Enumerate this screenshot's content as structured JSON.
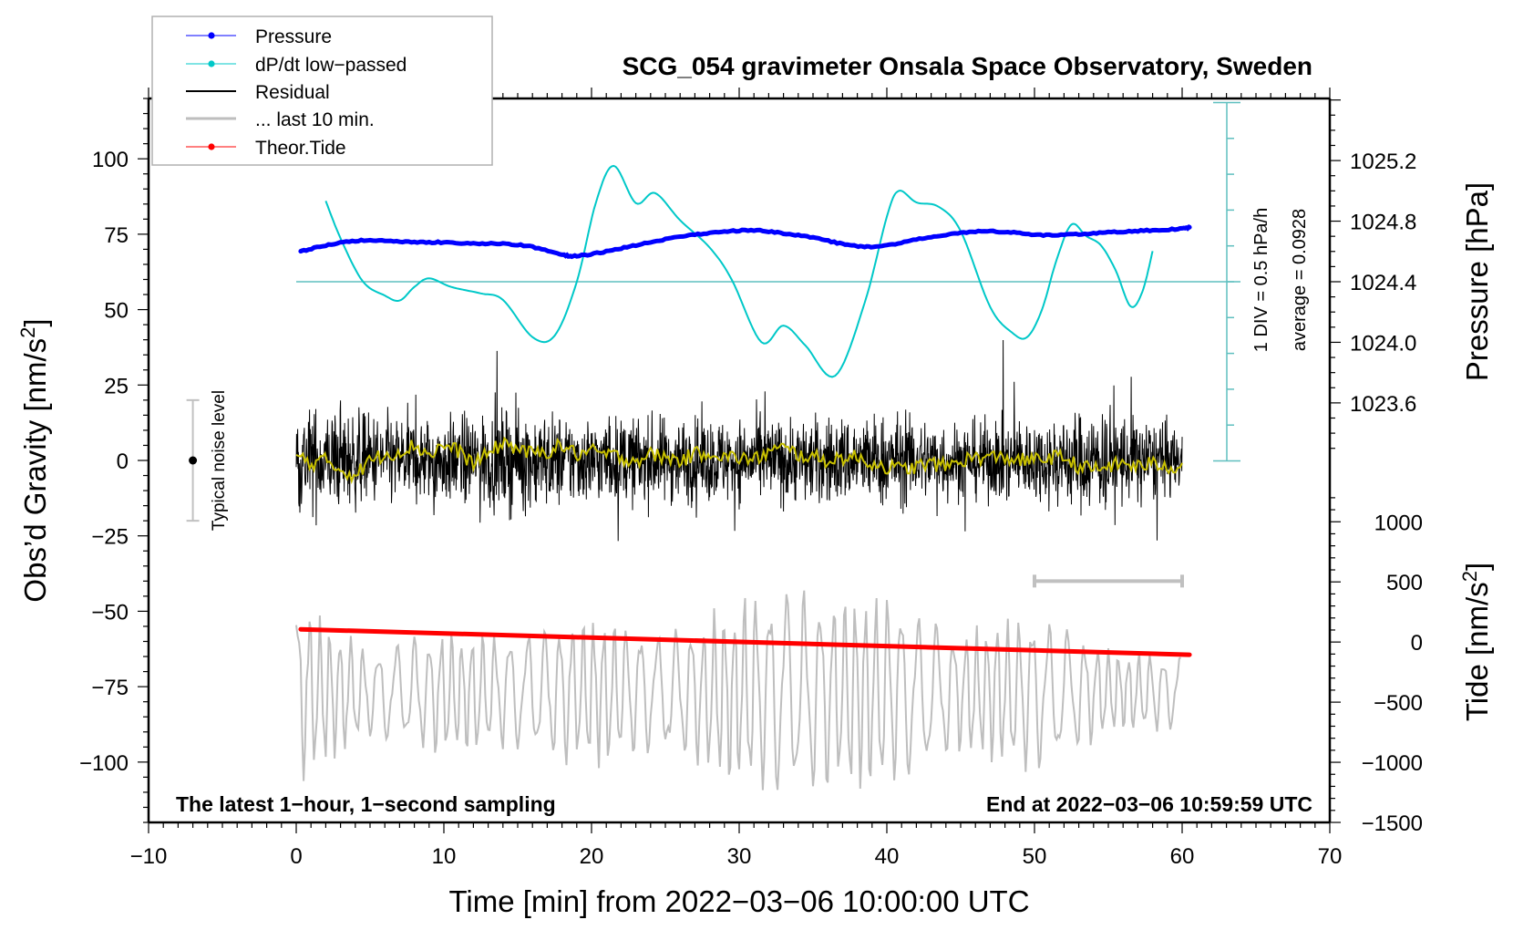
{
  "chart_data": {
    "type": "line",
    "title": "SCG_054 gravimeter Onsala Space Observatory, Sweden",
    "xlabel": "Time [min] from 2022−03−06 10:00:00 UTC",
    "ylabel_left": "Obs’d Gravity [nm/s²]",
    "ylabel_right_pressure": "Pressure [hPa]",
    "ylabel_right_tide": "Tide [nm/s²]",
    "xlim": [
      -10,
      70
    ],
    "ylim": [
      -120,
      120
    ],
    "x_ticks": [
      -10,
      0,
      10,
      20,
      30,
      40,
      50,
      60,
      70
    ],
    "x_tick_labels": [
      "−10",
      "0",
      "10",
      "20",
      "30",
      "40",
      "50",
      "60",
      "70"
    ],
    "y_ticks": [
      -100,
      -75,
      -50,
      -25,
      0,
      25,
      50,
      75,
      100
    ],
    "y_tick_labels": [
      "−100",
      "−75",
      "−50",
      "−25",
      "0",
      "25",
      "50",
      "75",
      "100"
    ],
    "pressure_axis": {
      "lim": [
        1020.83,
        1025.61
      ],
      "ticks": [
        1023.6,
        1024.0,
        1024.4,
        1024.8,
        1025.2
      ],
      "tick_labels": [
        "1023.6",
        "1024.0",
        "1024.4",
        "1024.8",
        "1025.2"
      ]
    },
    "tide_axis": {
      "lim": [
        -1500,
        4520
      ],
      "ticks": [
        -1500,
        -1000,
        -500,
        0,
        500,
        1000
      ],
      "tick_labels": [
        "−1500",
        "−1000",
        "−500",
        "0",
        "500",
        "1000"
      ]
    },
    "dpdt_scale": {
      "label_div": "1 DIV = 0.5 hPa/h",
      "label_avg": "average = 0.0928",
      "average": 0.0928,
      "per_div": 0.5,
      "divisions": 10
    },
    "legend": {
      "position": "top-left",
      "entries": [
        {
          "label": "Pressure",
          "color": "#0000ff",
          "marker": "dot"
        },
        {
          "label": "dP/dt low−passed",
          "color": "#00c8c8",
          "marker": "dot"
        },
        {
          "label": "Residual",
          "color": "#000000",
          "marker": "line"
        },
        {
          "label": "... last 10 min.",
          "color": "#bebebe",
          "marker": "line"
        },
        {
          "label": "Theor.Tide",
          "color": "#ff0000",
          "marker": "dot"
        }
      ]
    },
    "annotations": {
      "bottom_left": "The latest 1−hour, 1−second sampling",
      "bottom_right": "End at 2022−03−06 10:59:59 UTC",
      "noise_label": "Typical noise level",
      "noise_level": {
        "x": -7,
        "center": 0,
        "half_range": 20
      },
      "last10_bar": {
        "x_from": 50,
        "x_to": 60,
        "y": -40
      }
    },
    "series": [
      {
        "name": "Pressure",
        "axis": "pressure",
        "color": "#0000ff",
        "x": [
          0.3,
          2,
          4,
          6,
          8,
          10,
          12,
          14,
          16,
          18,
          19,
          21,
          23,
          25,
          27,
          29,
          31,
          33,
          35,
          37,
          38.5,
          40,
          42,
          44,
          46,
          48,
          50,
          52,
          54,
          56,
          58,
          60,
          60.5
        ],
        "y": [
          1024.6,
          1024.64,
          1024.67,
          1024.67,
          1024.66,
          1024.66,
          1024.65,
          1024.65,
          1024.63,
          1024.58,
          1024.57,
          1024.6,
          1024.64,
          1024.68,
          1024.71,
          1024.73,
          1024.74,
          1024.72,
          1024.69,
          1024.65,
          1024.63,
          1024.64,
          1024.68,
          1024.71,
          1024.73,
          1024.73,
          1024.71,
          1024.71,
          1024.72,
          1024.73,
          1024.74,
          1024.75,
          1024.76
        ]
      },
      {
        "name": "dP/dt low-passed",
        "axis": "dpdt",
        "unit": "hPa/h",
        "color": "#00c8c8",
        "x": [
          2,
          3,
          4.5,
          6,
          7,
          8,
          9,
          10.5,
          12.5,
          14,
          16,
          17.5,
          19,
          20.3,
          21.5,
          23,
          24.3,
          26,
          28,
          29.5,
          31.5,
          33,
          34.5,
          36.5,
          38.5,
          40,
          40.8,
          42,
          43.5,
          45,
          47,
          48.5,
          49.5,
          50.5,
          51.5,
          52.5,
          53.5,
          54.5,
          55.5,
          56.5,
          57.3,
          58
        ],
        "y": [
          1.22,
          0.7,
          0.1,
          -0.1,
          -0.17,
          0.02,
          0.14,
          0.02,
          -0.07,
          -0.16,
          -0.68,
          -0.66,
          0.09,
          1.2,
          1.71,
          1.19,
          1.33,
          0.95,
          0.57,
          0.12,
          -0.75,
          -0.52,
          -0.8,
          -1.22,
          -0.2,
          1.0,
          1.36,
          1.2,
          1.14,
          0.8,
          -0.26,
          -0.62,
          -0.68,
          -0.3,
          0.4,
          0.89,
          0.73,
          0.6,
          0.25,
          -0.25,
          -0.05,
          0.52
        ]
      },
      {
        "name": "Residual",
        "axis": "gravity",
        "color": "#000000",
        "sampling": "1 s",
        "envelope_minutes": [
          0,
          5,
          10,
          15,
          20,
          25,
          30,
          35,
          40,
          45,
          50,
          55,
          60
        ],
        "envelope_amplitude": [
          35,
          30,
          28,
          33,
          28,
          28,
          27,
          28,
          30,
          25,
          27,
          35,
          20
        ]
      },
      {
        "name": "Residual smoothed",
        "axis": "gravity",
        "color": "#c8c000",
        "x": [
          0,
          1,
          2,
          3,
          4,
          5,
          6,
          7,
          8,
          9,
          10,
          11,
          12,
          13,
          14,
          15,
          16,
          17,
          18,
          19,
          20,
          21,
          22,
          23,
          24,
          25,
          26,
          27,
          28,
          29,
          30,
          31,
          32,
          33,
          34,
          35,
          36,
          37,
          38,
          39,
          40,
          41,
          42,
          43,
          44,
          45,
          46,
          47,
          48,
          49,
          50,
          51,
          52,
          53,
          54,
          55,
          56,
          57,
          58,
          59,
          60
        ],
        "y": [
          2,
          -1,
          0,
          -3,
          -5,
          0,
          2,
          3,
          5,
          2,
          5,
          3,
          -1,
          2,
          6,
          4,
          2,
          3,
          5,
          2,
          3,
          2,
          1,
          0,
          2,
          1,
          0,
          2,
          3,
          1,
          1,
          0,
          3,
          4,
          2,
          1,
          0,
          1,
          1,
          -1,
          -2,
          -3,
          -2,
          -1,
          -2,
          0,
          1,
          1,
          1,
          0,
          0,
          1,
          1,
          -2,
          -3,
          -2,
          -1,
          -2,
          -1,
          -2,
          -2
        ]
      },
      {
        "name": "... last 10 min.",
        "axis": "gravity",
        "color": "#bebebe",
        "note": "last 10 minutes of residual stretched over 0–60 min, plotted offset",
        "baseline": -77,
        "envelope_minutes": [
          0,
          5,
          10,
          15,
          20,
          25,
          30,
          35,
          40,
          45,
          50,
          55,
          60
        ],
        "envelope_amplitude": [
          25,
          12,
          17,
          16,
          21,
          16,
          26,
          28,
          26,
          17,
          22,
          12,
          10
        ]
      },
      {
        "name": "Theor.Tide",
        "axis": "tide",
        "color": "#ff0000",
        "x": [
          0.3,
          60.5
        ],
        "y": [
          106,
          -106
        ]
      }
    ]
  }
}
